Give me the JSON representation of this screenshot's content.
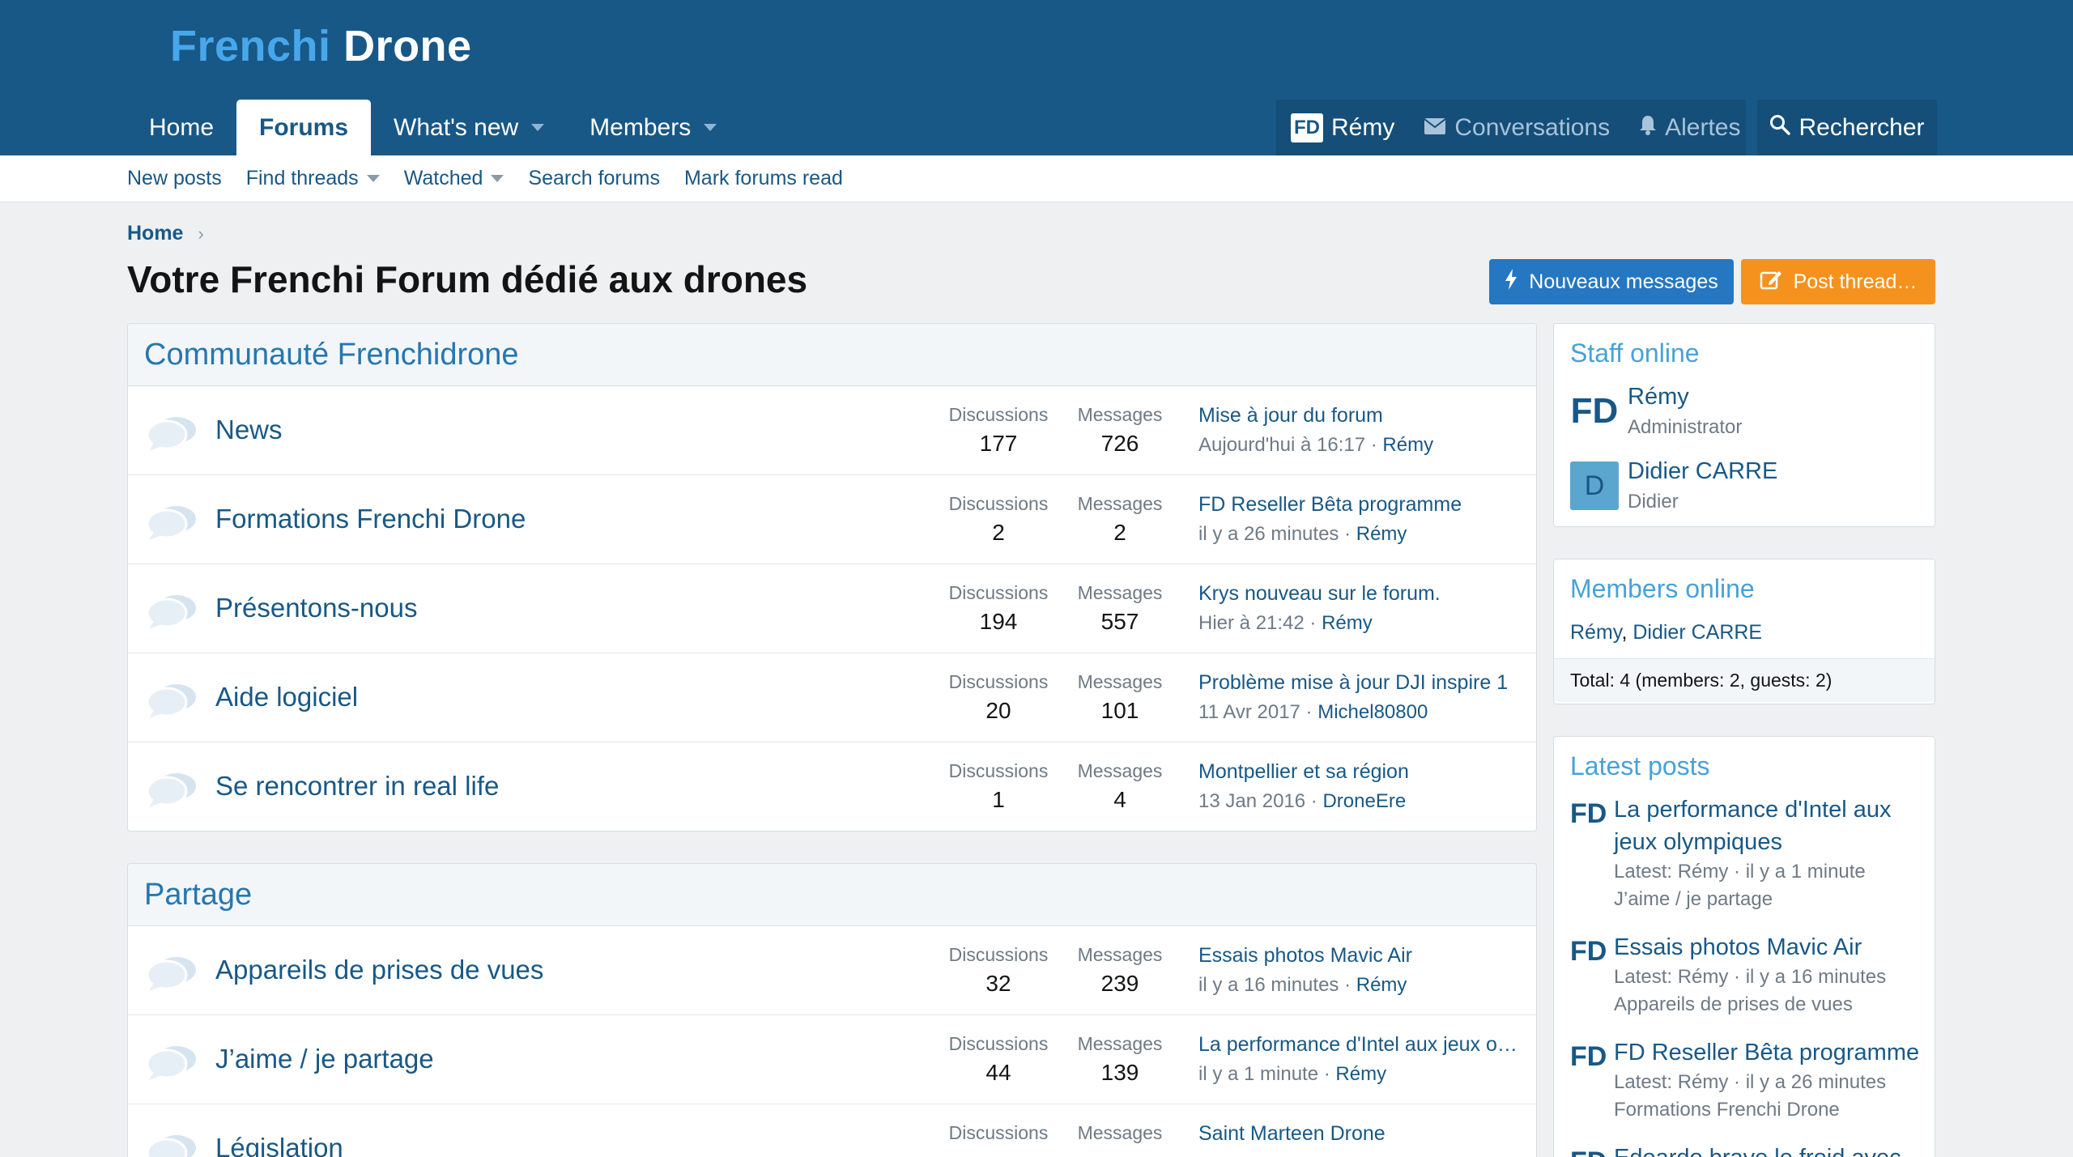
{
  "logo": {
    "part1": "Frenchi",
    "part2": "Drone"
  },
  "nav": {
    "tabs": [
      {
        "label": "Home"
      },
      {
        "label": "Forums"
      },
      {
        "label": "What's new"
      },
      {
        "label": "Members"
      }
    ],
    "user": "Rémy",
    "user_badge": "FD",
    "conversations": "Conversations",
    "alerts": "Alertes",
    "search": "Rechercher"
  },
  "subnav": {
    "items": [
      "New posts",
      "Find threads",
      "Watched",
      "Search forums",
      "Mark forums read"
    ]
  },
  "breadcrumb": {
    "home": "Home"
  },
  "page": {
    "title": "Votre Frenchi Forum dédié aux drones",
    "btn_new_messages": "Nouveaux messages",
    "btn_post_thread": "Post thread…"
  },
  "stat_labels": {
    "discussions": "Discussions",
    "messages": "Messages"
  },
  "categories": [
    {
      "title": "Communauté Frenchidrone",
      "forums": [
        {
          "title": "News",
          "discussions": "177",
          "messages": "726",
          "latest_title": "Mise à jour du forum",
          "latest_time": "Aujourd'hui à 16:17",
          "latest_user": "Rémy"
        },
        {
          "title": "Formations Frenchi Drone",
          "discussions": "2",
          "messages": "2",
          "latest_title": "FD Reseller Bêta programme",
          "latest_time": "il y a 26 minutes",
          "latest_user": "Rémy"
        },
        {
          "title": "Présentons-nous",
          "discussions": "194",
          "messages": "557",
          "latest_title": "Krys nouveau sur le forum.",
          "latest_time": "Hier à 21:42",
          "latest_user": "Rémy"
        },
        {
          "title": "Aide logiciel",
          "discussions": "20",
          "messages": "101",
          "latest_title": "Problème mise à jour DJI inspire 1",
          "latest_time": "11 Avr 2017",
          "latest_user": "Michel80800"
        },
        {
          "title": "Se rencontrer in real life",
          "discussions": "1",
          "messages": "4",
          "latest_title": "Montpellier et sa région",
          "latest_time": "13 Jan 2016",
          "latest_user": "DroneEre"
        }
      ]
    },
    {
      "title": "Partage",
      "forums": [
        {
          "title": "Appareils de prises de vues",
          "discussions": "32",
          "messages": "239",
          "latest_title": "Essais photos Mavic Air",
          "latest_time": "il y a 16 minutes",
          "latest_user": "Rémy"
        },
        {
          "title": "J’aime / je partage",
          "discussions": "44",
          "messages": "139",
          "latest_title": "La performance d'Intel aux jeux o…",
          "latest_time": "il y a 1 minute",
          "latest_user": "Rémy"
        },
        {
          "title": "Législation",
          "discussions": "",
          "messages": "",
          "latest_title": "Saint Marteen Drone",
          "latest_time": "",
          "latest_user": ""
        }
      ]
    }
  ],
  "sidebar": {
    "staff_title": "Staff online",
    "staff": [
      {
        "avatar": "FD",
        "name": "Rémy",
        "role": "Administrator"
      },
      {
        "avatar": "D",
        "name": "Didier CARRE",
        "role": "Didier"
      }
    ],
    "members_title": "Members online",
    "members": [
      "Rémy",
      "Didier CARRE"
    ],
    "members_total": "Total: 4 (members: 2, guests: 2)",
    "latest_title": "Latest posts",
    "latest": [
      {
        "avatar": "FD",
        "title": "La performance d'Intel aux jeux olympiques",
        "meta": "Latest: Rémy · il y a 1 minute",
        "forum": "J’aime / je partage"
      },
      {
        "avatar": "FD",
        "title": "Essais photos Mavic Air",
        "meta": "Latest: Rémy · il y a 16 minutes",
        "forum": "Appareils de prises de vues"
      },
      {
        "avatar": "FD",
        "title": "FD Reseller Bêta programme",
        "meta": "Latest: Rémy · il y a 26 minutes",
        "forum": "Formations Frenchi Drone"
      },
      {
        "avatar": "FD",
        "title": "Edoardo brave le froid avec",
        "meta": "",
        "forum": ""
      }
    ]
  },
  "icons": {
    "node": "speech-bubbles-icon",
    "alerts": "bell-icon",
    "conversations": "envelope-icon",
    "search": "search-icon",
    "new_messages": "bolt-icon",
    "post_thread": "edit-icon"
  },
  "colors": {
    "header": "#185886",
    "accent": "#2577c1",
    "orange": "#f5921e",
    "link": "#185886"
  }
}
